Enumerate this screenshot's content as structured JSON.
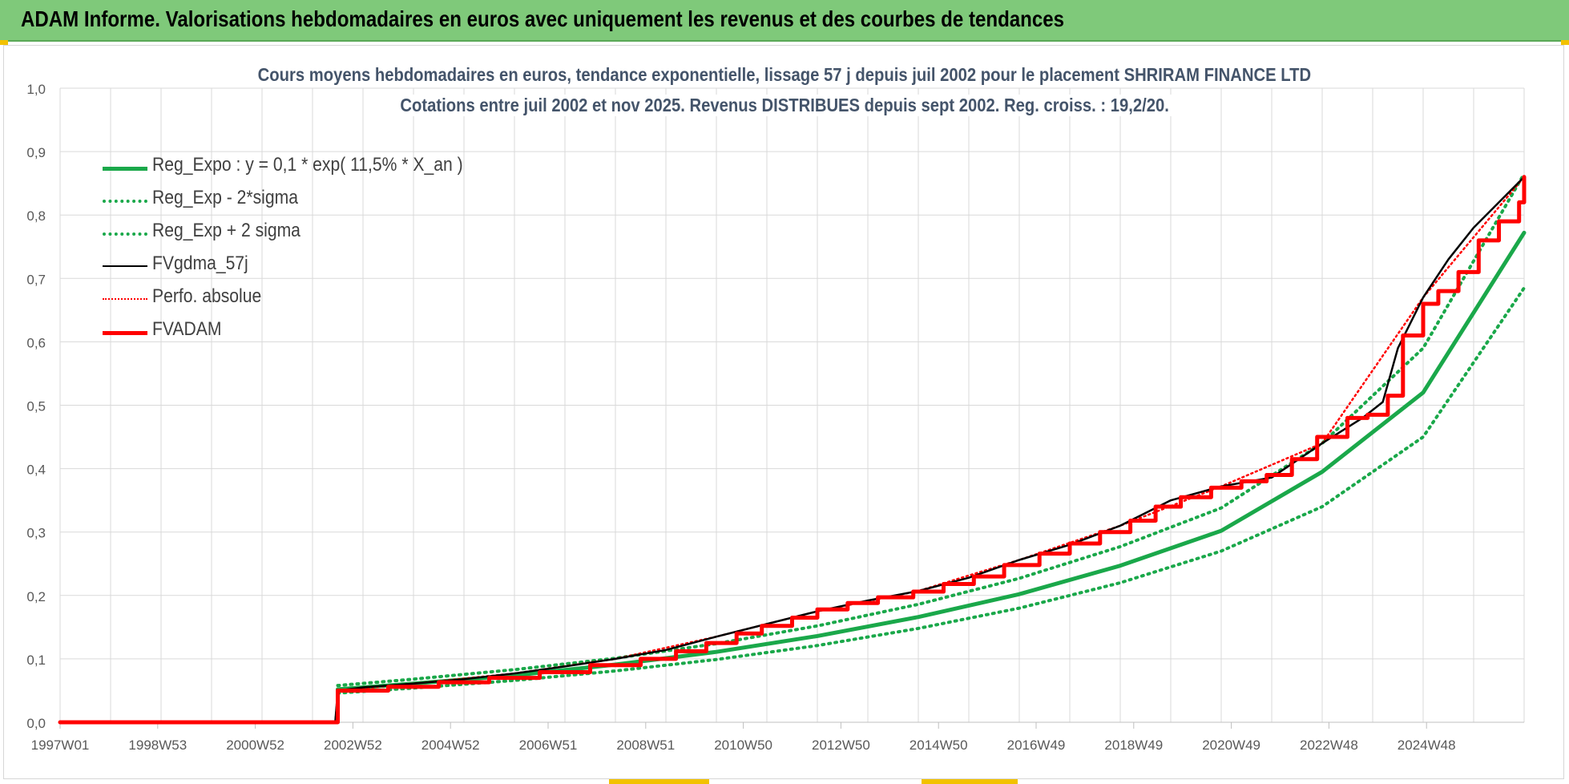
{
  "header": {
    "title": "ADAM Informe. Valorisations hebdomadaires en euros avec uniquement les revenus et des courbes de tendances"
  },
  "colors": {
    "header_bg": "#7fc97a",
    "green": "#1aa84a",
    "red": "#ff0000",
    "black": "#000000",
    "grid": "#d9d9d9",
    "title": "#44546a"
  },
  "chart_data": {
    "type": "line",
    "title": "Cours moyens hebdomadaires en euros, tendance exponentielle, lissage 57 j depuis juil 2002 pour le placement SHRIRAM FINANCE LTD",
    "subtitle": "Cotations entre juil 2002 et nov 2025. Revenus DISTRIBUES depuis sept 2002. Reg. croiss. : 19,2/20.",
    "xlabel": "",
    "ylabel": "",
    "x_ticks": [
      "1997W01",
      "1998W53",
      "2000W52",
      "2002W52",
      "2004W52",
      "2006W51",
      "2008W51",
      "2010W50",
      "2012W50",
      "2014W50",
      "2016W49",
      "2018W49",
      "2020W49",
      "2022W48",
      "2024W48"
    ],
    "xlim": [
      1997.0,
      2026.0
    ],
    "ylim": [
      0,
      1.0
    ],
    "y_ticks": [
      "0,0",
      "0,1",
      "0,2",
      "0,3",
      "0,4",
      "0,5",
      "0,6",
      "0,7",
      "0,8",
      "0,9",
      "1,0"
    ],
    "grid": true,
    "legend_position": "top-left",
    "legend": [
      {
        "label": "Reg_Expo : y = 0,1 * exp( 11,5% *  X_an )",
        "style": "solid-thick",
        "color": "#1aa84a"
      },
      {
        "label": "Reg_Exp - 2*sigma",
        "style": "dotted",
        "color": "#1aa84a"
      },
      {
        "label": "Reg_Exp + 2 sigma",
        "style": "dotted",
        "color": "#1aa84a"
      },
      {
        "label": "FVgdma_57j",
        "style": "solid",
        "color": "#000000"
      },
      {
        "label": "Perfo. absolue",
        "style": "dotted",
        "color": "#ff0000"
      },
      {
        "label": "FVADAM",
        "style": "solid-thick",
        "color": "#ff0000"
      }
    ],
    "series": [
      {
        "name": "Reg_Expo : y = 0,1 * exp( 11,5% *  X_an )",
        "x": [
          2002.5,
          2004,
          2006,
          2008,
          2010,
          2012,
          2014,
          2016,
          2018,
          2020,
          2022,
          2024,
          2026
        ],
        "values": [
          0.052,
          0.061,
          0.074,
          0.091,
          0.111,
          0.136,
          0.166,
          0.202,
          0.247,
          0.302,
          0.395,
          0.52,
          0.772
        ]
      },
      {
        "name": "Reg_Exp - 2*sigma",
        "x": [
          2002.5,
          2004,
          2006,
          2008,
          2010,
          2012,
          2014,
          2016,
          2018,
          2020,
          2022,
          2024,
          2026
        ],
        "values": [
          0.046,
          0.054,
          0.066,
          0.081,
          0.099,
          0.121,
          0.148,
          0.18,
          0.22,
          0.27,
          0.34,
          0.45,
          0.685
        ]
      },
      {
        "name": "Reg_Exp + 2 sigma",
        "x": [
          2002.5,
          2004,
          2006,
          2008,
          2010,
          2012,
          2014,
          2016,
          2018,
          2020,
          2022,
          2024,
          2026
        ],
        "values": [
          0.058,
          0.068,
          0.083,
          0.101,
          0.124,
          0.152,
          0.186,
          0.227,
          0.277,
          0.338,
          0.44,
          0.59,
          0.865
        ]
      },
      {
        "name": "FVgdma_57j",
        "x": [
          1997.0,
          2002.45,
          2002.5,
          2003,
          2004,
          2005,
          2006,
          2007,
          2008,
          2009,
          2010,
          2011,
          2012,
          2013,
          2014,
          2015,
          2016,
          2017,
          2018,
          2019,
          2020,
          2021,
          2022,
          2022.8,
          2023.2,
          2023.5,
          2024,
          2024.5,
          2025,
          2025.5,
          2026
        ],
        "values": [
          0,
          0,
          0.05,
          0.055,
          0.061,
          0.068,
          0.077,
          0.088,
          0.1,
          0.114,
          0.135,
          0.155,
          0.175,
          0.192,
          0.207,
          0.228,
          0.256,
          0.28,
          0.31,
          0.35,
          0.372,
          0.386,
          0.44,
          0.48,
          0.505,
          0.59,
          0.67,
          0.73,
          0.78,
          0.82,
          0.86
        ]
      },
      {
        "name": "Perfo. absolue",
        "x": [
          1997.0,
          2002.45,
          2002.5,
          2004,
          2006,
          2008,
          2010,
          2012,
          2014,
          2016,
          2018,
          2020,
          2022,
          2024,
          2026
        ],
        "values": [
          0,
          0,
          0.05,
          0.061,
          0.077,
          0.1,
          0.135,
          0.175,
          0.207,
          0.256,
          0.31,
          0.372,
          0.44,
          0.67,
          0.86
        ]
      },
      {
        "name": "FVADAM",
        "x": [
          1997.0,
          2002.45,
          2002.5,
          2003.5,
          2004.5,
          2005.5,
          2006.5,
          2007.5,
          2008.5,
          2009.2,
          2009.8,
          2010.4,
          2010.9,
          2011.5,
          2012,
          2012.6,
          2013.2,
          2013.9,
          2014.5,
          2015.1,
          2015.7,
          2016.4,
          2017,
          2017.6,
          2018.2,
          2018.7,
          2019.2,
          2019.8,
          2020.4,
          2020.9,
          2021.4,
          2021.9,
          2022.5,
          2022.9,
          2023.3,
          2023.6,
          2024,
          2024.3,
          2024.7,
          2025.1,
          2025.5,
          2025.9,
          2026
        ],
        "values": [
          0,
          0,
          0.05,
          0.056,
          0.063,
          0.07,
          0.079,
          0.09,
          0.1,
          0.112,
          0.125,
          0.14,
          0.152,
          0.165,
          0.178,
          0.188,
          0.197,
          0.206,
          0.218,
          0.23,
          0.248,
          0.266,
          0.282,
          0.3,
          0.318,
          0.34,
          0.355,
          0.37,
          0.38,
          0.39,
          0.415,
          0.45,
          0.48,
          0.485,
          0.515,
          0.61,
          0.66,
          0.68,
          0.71,
          0.76,
          0.79,
          0.82,
          0.86
        ]
      }
    ]
  }
}
